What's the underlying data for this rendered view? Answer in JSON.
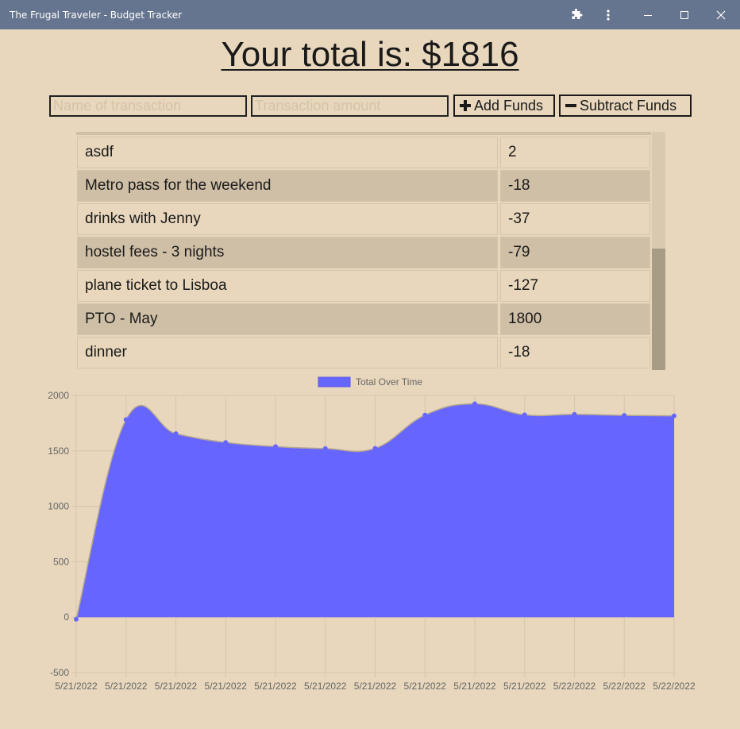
{
  "window": {
    "title": "The Frugal Traveler - Budget Tracker",
    "icons": [
      "puzzle-icon",
      "kebab-menu-icon",
      "minimize-icon",
      "maximize-icon",
      "close-icon"
    ]
  },
  "header": {
    "total_text": "Your total is: $1816"
  },
  "form": {
    "name_placeholder": "Name of transaction",
    "amount_placeholder": "Transaction amount",
    "add_label": "Add Funds",
    "subtract_label": "Subtract Funds"
  },
  "transactions": [
    {
      "name": "asdf",
      "value": "2"
    },
    {
      "name": "Metro pass for the weekend",
      "value": "-18"
    },
    {
      "name": "drinks with Jenny",
      "value": "-37"
    },
    {
      "name": "hostel fees - 3 nights",
      "value": "-79"
    },
    {
      "name": "plane ticket to Lisboa",
      "value": "-127"
    },
    {
      "name": "PTO - May",
      "value": "1800"
    },
    {
      "name": "dinner",
      "value": "-18"
    }
  ],
  "colors": {
    "background": "#e8d7bc",
    "titlebar": "#66758f",
    "series_fill": "#6666ff",
    "row_alt": "#cfbfa6"
  },
  "chart_data": {
    "type": "area",
    "legend": "top",
    "grid": true,
    "x": [
      "5/21/2022",
      "5/21/2022",
      "5/21/2022",
      "5/21/2022",
      "5/21/2022",
      "5/21/2022",
      "5/21/2022",
      "5/21/2022",
      "5/21/2022",
      "5/21/2022",
      "5/22/2022",
      "5/22/2022",
      "5/22/2022"
    ],
    "y_ticks": [
      2000,
      1500,
      1000,
      500,
      0,
      -500
    ],
    "ylim": [
      -500,
      2000
    ],
    "series": [
      {
        "name": "Total Over Time",
        "values": [
          -18,
          1782,
          1655,
          1576,
          1539,
          1521,
          1523,
          1823,
          1925,
          1825,
          1830,
          1820,
          1816
        ]
      }
    ]
  }
}
